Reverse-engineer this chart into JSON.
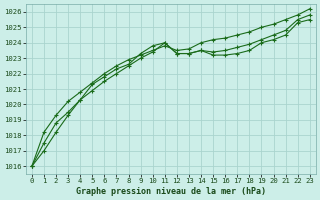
{
  "title": "Graphe pression niveau de la mer (hPa)",
  "background_color": "#cceee8",
  "grid_color": "#aad4ce",
  "line_color": "#1a6b1a",
  "x_ticks": [
    0,
    1,
    2,
    3,
    4,
    5,
    6,
    7,
    8,
    9,
    10,
    11,
    12,
    13,
    14,
    15,
    16,
    17,
    18,
    19,
    20,
    21,
    22,
    23
  ],
  "ylim": [
    1015.5,
    1026.5
  ],
  "yticks": [
    1016,
    1017,
    1018,
    1019,
    1020,
    1021,
    1022,
    1023,
    1024,
    1025,
    1026
  ],
  "series1": [
    1016.0,
    1017.0,
    1018.2,
    1019.3,
    1020.3,
    1021.3,
    1021.8,
    1022.3,
    1022.6,
    1023.3,
    1023.8,
    1024.0,
    1023.3,
    1023.3,
    1023.5,
    1023.2,
    1023.2,
    1023.3,
    1023.5,
    1024.0,
    1024.2,
    1024.5,
    1025.3,
    1025.5
  ],
  "series2": [
    1016.0,
    1017.5,
    1018.8,
    1019.5,
    1020.3,
    1020.9,
    1021.5,
    1022.0,
    1022.5,
    1023.0,
    1023.4,
    1024.0,
    1023.3,
    1023.3,
    1023.5,
    1023.4,
    1023.5,
    1023.7,
    1023.9,
    1024.2,
    1024.5,
    1024.8,
    1025.5,
    1025.8
  ],
  "series3": [
    1016.0,
    1018.2,
    1019.3,
    1020.2,
    1020.8,
    1021.4,
    1022.0,
    1022.5,
    1022.9,
    1023.2,
    1023.5,
    1023.8,
    1023.5,
    1023.6,
    1024.0,
    1024.2,
    1024.3,
    1024.5,
    1024.7,
    1025.0,
    1025.2,
    1025.5,
    1025.8,
    1026.2
  ]
}
